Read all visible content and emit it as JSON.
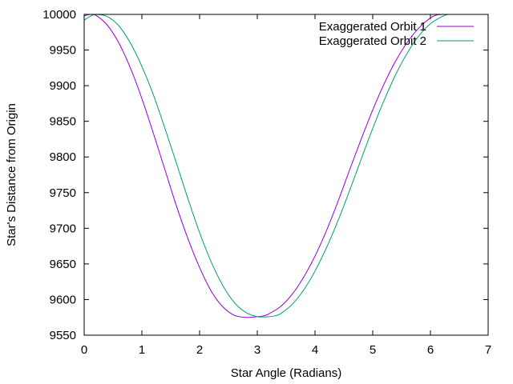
{
  "chart_data": {
    "type": "line",
    "title": "",
    "xlabel": "Star Angle (Radians)",
    "ylabel": "Star's Distance from Origin",
    "xlim": [
      0,
      7
    ],
    "ylim": [
      9550,
      10000
    ],
    "xticks": [
      0,
      1,
      2,
      3,
      4,
      5,
      6,
      7
    ],
    "yticks": [
      9550,
      9600,
      9650,
      9700,
      9750,
      9800,
      9850,
      9900,
      9950,
      10000
    ],
    "grid": false,
    "legend_position": "top-right",
    "series": [
      {
        "name": "Exaggerated Orbit 1",
        "color": "#9400d3",
        "x": [
          0.0,
          0.1,
          0.2,
          0.4,
          0.6,
          0.8,
          1.0,
          1.2,
          1.4,
          1.6,
          1.8,
          2.0,
          2.2,
          2.4,
          2.6,
          2.8,
          3.0,
          3.1,
          3.2,
          3.4,
          3.6,
          3.8,
          4.0,
          4.2,
          4.4,
          4.6,
          4.8,
          5.0,
          5.2,
          5.4,
          5.6,
          5.8,
          6.0,
          6.1,
          6.2,
          6.3
        ],
        "y": [
          9998,
          10000,
          9999,
          9985,
          9960,
          9925,
          9882,
          9833,
          9782,
          9731,
          9685,
          9645,
          9612,
          9590,
          9578,
          9575,
          9576,
          9577,
          9580,
          9590,
          9607,
          9631,
          9661,
          9697,
          9738,
          9782,
          9825,
          9866,
          9903,
          9935,
          9961,
          9981,
          9995,
          9999,
          10000,
          10000
        ]
      },
      {
        "name": "Exaggerated Orbit 2",
        "color": "#009e73",
        "x": [
          0.0,
          0.1,
          0.2,
          0.4,
          0.6,
          0.8,
          1.0,
          1.2,
          1.4,
          1.6,
          1.8,
          2.0,
          2.2,
          2.4,
          2.6,
          2.8,
          3.0,
          3.2,
          3.3,
          3.4,
          3.6,
          3.8,
          4.0,
          4.2,
          4.4,
          4.6,
          4.8,
          5.0,
          5.2,
          5.4,
          5.6,
          5.8,
          6.0,
          6.2,
          6.3,
          6.35
        ],
        "y": [
          9992,
          9997,
          10000,
          9997,
          9984,
          9960,
          9927,
          9887,
          9840,
          9791,
          9741,
          9694,
          9653,
          9620,
          9596,
          9582,
          9576,
          9576,
          9577,
          9580,
          9593,
          9613,
          9640,
          9673,
          9711,
          9753,
          9797,
          9840,
          9880,
          9916,
          9946,
          9970,
          9987,
          9997,
          10000,
          10000
        ]
      }
    ]
  }
}
